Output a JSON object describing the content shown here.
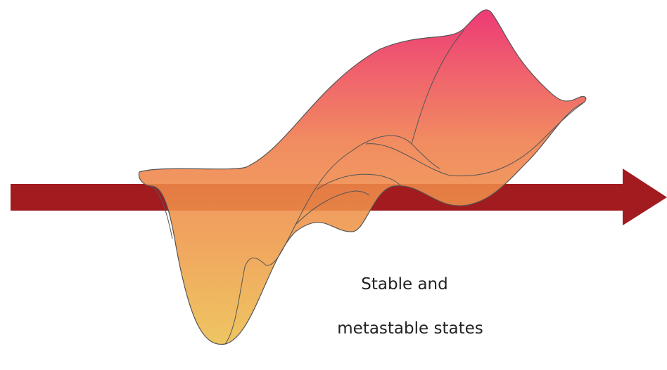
{
  "label": {
    "lines": [
      "Stable and",
      "metastable states"
    ]
  }
}
